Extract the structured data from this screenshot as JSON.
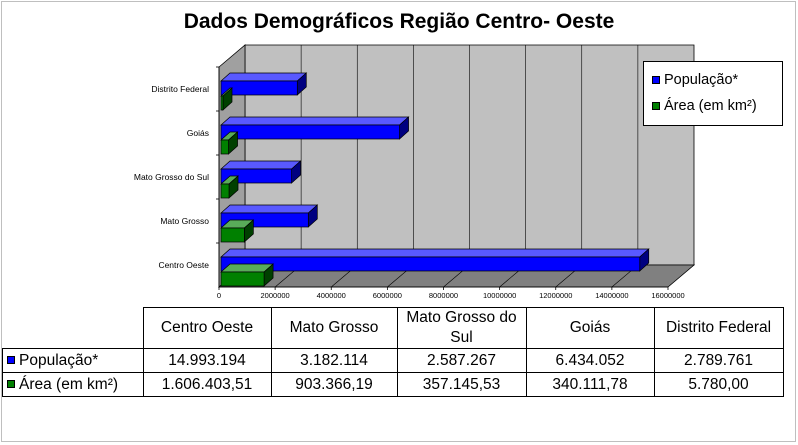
{
  "chart_data": {
    "type": "bar",
    "orientation": "horizontal",
    "title": "Dados Demográficos Região Centro- Oeste",
    "categories": [
      "Centro Oeste",
      "Mato Grosso",
      "Mato Grosso do Sul",
      "Goiás",
      "Distrito Federal"
    ],
    "series": [
      {
        "name": "População*",
        "color": "#0000ff",
        "values": [
          14993194,
          3182114,
          2587267,
          6434052,
          2789761
        ],
        "display_values": [
          "14.993.194",
          "3.182.114",
          "2.587.267",
          "6.434.052",
          "2.789.761"
        ]
      },
      {
        "name": "Área (em km²)",
        "color": "#008000",
        "values": [
          1606403.51,
          903366.19,
          357145.53,
          340111.78,
          5780.0
        ],
        "display_values": [
          "1.606.403,51",
          "903.366,19",
          "357.145,53",
          "340.111,78",
          "5.780,00"
        ]
      }
    ],
    "xlim": [
      0,
      16000000
    ],
    "x_ticks": [
      "0",
      "2000000",
      "4000000",
      "6000000",
      "8000000",
      "10000000",
      "12000000",
      "14000000",
      "16000000"
    ],
    "grid": true,
    "legend_position": "right",
    "walls": {
      "back": "#c0c0c0",
      "floor": "#808080",
      "side": "#a0a0a0"
    },
    "table_header": [
      "Centro Oeste",
      "Mato Grosso",
      "Mato Grosso do Sul",
      "Goiás",
      "Distrito Federal"
    ]
  }
}
